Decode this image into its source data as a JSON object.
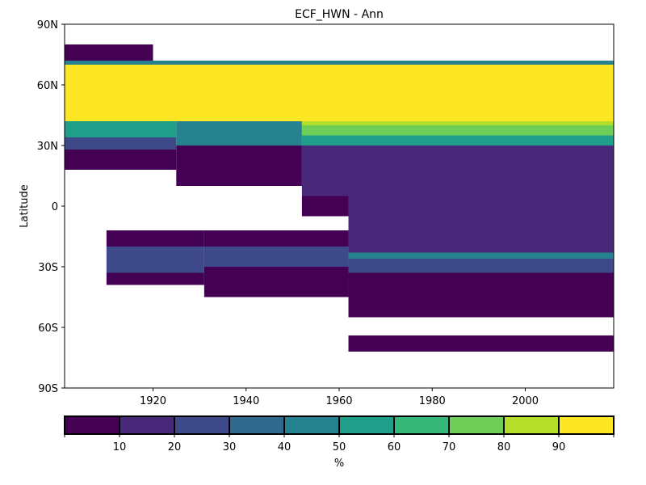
{
  "chart_data": {
    "type": "heatmap",
    "title": "ECF_HWN - Ann",
    "xlabel": "",
    "ylabel": "Latitude",
    "xlim": [
      1901,
      2019
    ],
    "ylim": [
      -90,
      90
    ],
    "x_ticks": [
      1920,
      1940,
      1960,
      1980,
      2000
    ],
    "x_tick_labels": [
      "1920",
      "1940",
      "1960",
      "1980",
      "2000"
    ],
    "y_ticks": [
      90,
      60,
      30,
      0,
      -30,
      -60,
      -90
    ],
    "y_tick_labels": [
      "90N",
      "60N",
      "30N",
      "0",
      "30S",
      "60S",
      "90S"
    ],
    "grid": false,
    "colorbar": {
      "label": "%",
      "boundaries": [
        0,
        10,
        20,
        30,
        40,
        50,
        60,
        70,
        80,
        90,
        100
      ],
      "tick_labels": [
        "10",
        "20",
        "30",
        "40",
        "50",
        "60",
        "70",
        "80",
        "90"
      ],
      "colors": [
        "#440154",
        "#482878",
        "#3e4989",
        "#31688e",
        "#26828e",
        "#1f9e89",
        "#35b779",
        "#6ece58",
        "#b5de2b",
        "#fde725"
      ]
    },
    "regions": [
      {
        "x": [
          1901,
          1920
        ],
        "lat": [
          72,
          80
        ],
        "value": 5
      },
      {
        "x": [
          1901,
          2019
        ],
        "lat": [
          70,
          72
        ],
        "value": 45
      },
      {
        "x": [
          1901,
          2019
        ],
        "lat": [
          42,
          70
        ],
        "value": 95
      },
      {
        "x": [
          1901,
          1925
        ],
        "lat": [
          34,
          42
        ],
        "value": 55
      },
      {
        "x": [
          1901,
          1925
        ],
        "lat": [
          28,
          34
        ],
        "value": 25
      },
      {
        "x": [
          1901,
          1925
        ],
        "lat": [
          18,
          28
        ],
        "value": 5
      },
      {
        "x": [
          1925,
          1952
        ],
        "lat": [
          30,
          42
        ],
        "value": 40
      },
      {
        "x": [
          1925,
          1952
        ],
        "lat": [
          10,
          30
        ],
        "value": 5
      },
      {
        "x": [
          1952,
          2019
        ],
        "lat": [
          40,
          42
        ],
        "value": 85
      },
      {
        "x": [
          1952,
          2019
        ],
        "lat": [
          35,
          40
        ],
        "value": 70
      },
      {
        "x": [
          1952,
          2019
        ],
        "lat": [
          30,
          35
        ],
        "value": 55
      },
      {
        "x": [
          1952,
          2019
        ],
        "lat": [
          20,
          30
        ],
        "value": 15
      },
      {
        "x": [
          1952,
          2019
        ],
        "lat": [
          5,
          20
        ],
        "value": 15
      },
      {
        "x": [
          1952,
          1962
        ],
        "lat": [
          -5,
          5
        ],
        "value": 5
      },
      {
        "x": [
          1962,
          2019
        ],
        "lat": [
          -10,
          5
        ],
        "value": 15
      },
      {
        "x": [
          1962,
          2019
        ],
        "lat": [
          -18,
          -10
        ],
        "value": 15
      },
      {
        "x": [
          1910,
          1931
        ],
        "lat": [
          -20,
          -12
        ],
        "value": 5
      },
      {
        "x": [
          1910,
          1931
        ],
        "lat": [
          -33,
          -20
        ],
        "value": 25
      },
      {
        "x": [
          1910,
          1931
        ],
        "lat": [
          -39,
          -33
        ],
        "value": 5
      },
      {
        "x": [
          1931,
          1962
        ],
        "lat": [
          -20,
          -12
        ],
        "value": 5
      },
      {
        "x": [
          1931,
          1962
        ],
        "lat": [
          -30,
          -20
        ],
        "value": 25
      },
      {
        "x": [
          1931,
          1962
        ],
        "lat": [
          -45,
          -30
        ],
        "value": 5
      },
      {
        "x": [
          1962,
          2019
        ],
        "lat": [
          -23,
          -18
        ],
        "value": 15
      },
      {
        "x": [
          1962,
          2019
        ],
        "lat": [
          -26,
          -23
        ],
        "value": 45
      },
      {
        "x": [
          1962,
          2019
        ],
        "lat": [
          -33,
          -26
        ],
        "value": 25
      },
      {
        "x": [
          1962,
          2019
        ],
        "lat": [
          -55,
          -33
        ],
        "value": 5
      },
      {
        "x": [
          1962,
          2019
        ],
        "lat": [
          -72,
          -64
        ],
        "value": 5
      }
    ]
  }
}
